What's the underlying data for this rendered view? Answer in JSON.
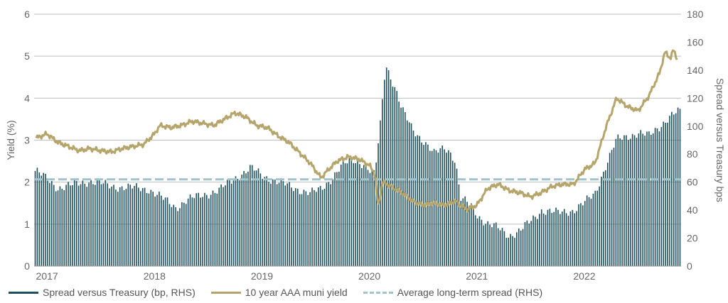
{
  "chart_data": {
    "type": "bar+line",
    "x_tick_labels": [
      "2017",
      "2018",
      "2019",
      "2020",
      "2021",
      "2022"
    ],
    "y_left": {
      "label": "Yield (%)",
      "ticks": [
        "0",
        "1",
        "2",
        "3",
        "4",
        "5",
        "6"
      ],
      "lim": [
        0,
        6
      ]
    },
    "y_right": {
      "label": "Spread versus Treasury bps",
      "ticks": [
        "0",
        "20",
        "40",
        "60",
        "80",
        "100",
        "120",
        "140",
        "160",
        "180"
      ],
      "lim": [
        0,
        180
      ]
    },
    "grid": "horizontal",
    "legend_position": "bottom",
    "colors": {
      "spread_bars": "#1e4f5c",
      "muni_line": "#b5a56b",
      "avg_line": "#9ec5cc"
    },
    "series": [
      {
        "name": "Spread versus Treasury (bp, RHS)",
        "kind": "bar",
        "axis": "right",
        "points": [
          [
            2016.9,
            68
          ],
          [
            2017.1,
            56
          ],
          [
            2017.25,
            58
          ],
          [
            2017.4,
            61
          ],
          [
            2017.6,
            57
          ],
          [
            2017.8,
            56
          ],
          [
            2017.95,
            55
          ],
          [
            2018.1,
            47
          ],
          [
            2018.2,
            42
          ],
          [
            2018.3,
            47
          ],
          [
            2018.45,
            51
          ],
          [
            2018.6,
            54
          ],
          [
            2018.75,
            63
          ],
          [
            2018.9,
            70
          ],
          [
            2019.0,
            65
          ],
          [
            2019.15,
            60
          ],
          [
            2019.3,
            56
          ],
          [
            2019.45,
            52
          ],
          [
            2019.55,
            55
          ],
          [
            2019.65,
            63
          ],
          [
            2019.75,
            72
          ],
          [
            2019.85,
            76
          ],
          [
            2019.95,
            73
          ],
          [
            2020.0,
            68
          ],
          [
            2020.05,
            65
          ],
          [
            2020.1,
            100
          ],
          [
            2020.15,
            145
          ],
          [
            2020.2,
            135
          ],
          [
            2020.25,
            125
          ],
          [
            2020.3,
            112
          ],
          [
            2020.4,
            98
          ],
          [
            2020.5,
            90
          ],
          [
            2020.6,
            80
          ],
          [
            2020.7,
            85
          ],
          [
            2020.75,
            82
          ],
          [
            2020.8,
            75
          ],
          [
            2020.85,
            48
          ],
          [
            2020.95,
            43
          ],
          [
            2021.0,
            37
          ],
          [
            2021.1,
            30
          ],
          [
            2021.2,
            27
          ],
          [
            2021.3,
            22
          ],
          [
            2021.4,
            25
          ],
          [
            2021.5,
            32
          ],
          [
            2021.6,
            40
          ],
          [
            2021.75,
            38
          ],
          [
            2021.9,
            40
          ],
          [
            2022.0,
            45
          ],
          [
            2022.1,
            52
          ],
          [
            2022.2,
            72
          ],
          [
            2022.3,
            90
          ],
          [
            2022.4,
            93
          ],
          [
            2022.5,
            95
          ],
          [
            2022.6,
            93
          ],
          [
            2022.7,
            100
          ],
          [
            2022.8,
            107
          ],
          [
            2022.87,
            110
          ]
        ]
      },
      {
        "name": "10 year AAA muni yield",
        "kind": "line",
        "axis": "left",
        "points": [
          [
            2016.9,
            3.05
          ],
          [
            2016.95,
            3.1
          ],
          [
            2017.0,
            3.15
          ],
          [
            2017.1,
            2.95
          ],
          [
            2017.2,
            2.85
          ],
          [
            2017.3,
            2.75
          ],
          [
            2017.4,
            2.8
          ],
          [
            2017.5,
            2.75
          ],
          [
            2017.6,
            2.72
          ],
          [
            2017.7,
            2.8
          ],
          [
            2017.8,
            2.85
          ],
          [
            2017.9,
            2.9
          ],
          [
            2018.0,
            3.15
          ],
          [
            2018.05,
            3.35
          ],
          [
            2018.15,
            3.3
          ],
          [
            2018.25,
            3.35
          ],
          [
            2018.35,
            3.45
          ],
          [
            2018.45,
            3.4
          ],
          [
            2018.55,
            3.35
          ],
          [
            2018.65,
            3.5
          ],
          [
            2018.75,
            3.65
          ],
          [
            2018.85,
            3.55
          ],
          [
            2018.95,
            3.35
          ],
          [
            2019.05,
            3.3
          ],
          [
            2019.15,
            3.1
          ],
          [
            2019.25,
            2.95
          ],
          [
            2019.35,
            2.7
          ],
          [
            2019.45,
            2.45
          ],
          [
            2019.55,
            2.1
          ],
          [
            2019.6,
            2.25
          ],
          [
            2019.7,
            2.5
          ],
          [
            2019.8,
            2.6
          ],
          [
            2019.9,
            2.55
          ],
          [
            2020.0,
            2.4
          ],
          [
            2020.05,
            2.2
          ],
          [
            2020.08,
            1.4
          ],
          [
            2020.12,
            2.0
          ],
          [
            2020.2,
            1.9
          ],
          [
            2020.3,
            1.75
          ],
          [
            2020.4,
            1.55
          ],
          [
            2020.5,
            1.45
          ],
          [
            2020.6,
            1.5
          ],
          [
            2020.7,
            1.45
          ],
          [
            2020.8,
            1.55
          ],
          [
            2020.9,
            1.35
          ],
          [
            2021.0,
            1.45
          ],
          [
            2021.1,
            1.85
          ],
          [
            2021.2,
            1.95
          ],
          [
            2021.3,
            1.8
          ],
          [
            2021.4,
            1.75
          ],
          [
            2021.5,
            1.65
          ],
          [
            2021.6,
            1.75
          ],
          [
            2021.7,
            1.9
          ],
          [
            2021.8,
            1.95
          ],
          [
            2021.9,
            1.95
          ],
          [
            2022.0,
            2.3
          ],
          [
            2022.1,
            2.45
          ],
          [
            2022.2,
            3.3
          ],
          [
            2022.3,
            4.0
          ],
          [
            2022.4,
            3.8
          ],
          [
            2022.5,
            3.7
          ],
          [
            2022.6,
            4.05
          ],
          [
            2022.7,
            4.6
          ],
          [
            2022.75,
            5.1
          ],
          [
            2022.8,
            4.95
          ],
          [
            2022.83,
            5.15
          ],
          [
            2022.87,
            4.9
          ]
        ]
      },
      {
        "name": "Average long-term spread (RHS)",
        "kind": "line-dashed",
        "axis": "right",
        "points": [
          [
            2016.88,
            62
          ],
          [
            2022.9,
            62
          ]
        ]
      }
    ]
  }
}
